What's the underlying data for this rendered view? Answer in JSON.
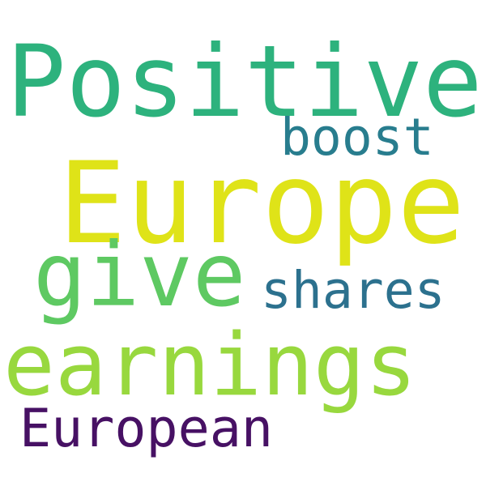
{
  "words": [
    {
      "text": "Positive",
      "color": "#2db27d"
    },
    {
      "text": "boost",
      "color": "#287d8e"
    },
    {
      "text": "Europe",
      "color": "#dfe318"
    },
    {
      "text": "give",
      "color": "#5ec962"
    },
    {
      "text": "shares",
      "color": "#2c718e"
    },
    {
      "text": "earnings",
      "color": "#98d83e"
    },
    {
      "text": "European",
      "color": "#471164"
    }
  ]
}
